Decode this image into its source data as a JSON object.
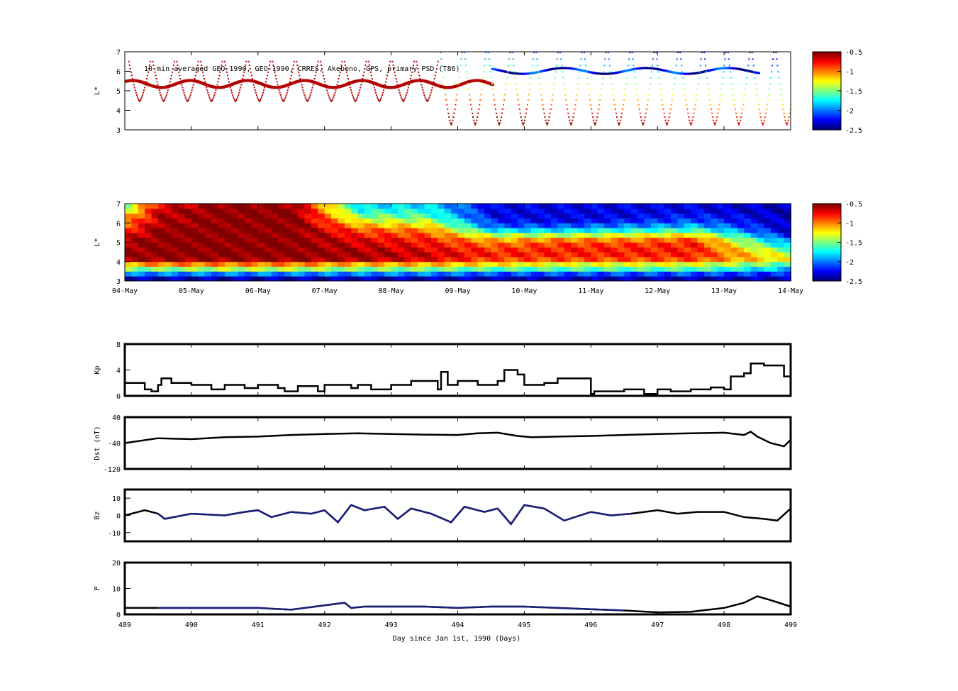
{
  "colors": {
    "axis": "#000000",
    "trace": "#000000",
    "trace_alt": "#1a1f7a",
    "background": "#ffffff"
  },
  "chart_data": [
    {
      "type": "scatter",
      "title": "10-min averaged GEO-1990, GEO-1990, CRRES, Akebono, GPS, primary PSD (T86)",
      "ylabel": "L*",
      "ylim": [
        3,
        7
      ],
      "yticks": [
        "3",
        "4",
        "5",
        "6",
        "7"
      ],
      "xlim": [
        489,
        499
      ],
      "colorbar": {
        "ticks": [
          "-0.5",
          "-1",
          "-1.5",
          "-2",
          "-2.5"
        ],
        "range": [
          -2.5,
          -0.5
        ],
        "colormap": "jet"
      },
      "orbit_arcs": {
        "geo_track_L": 5.25,
        "geo_track_psd": -0.6,
        "late_track_L": 6.0,
        "late_track_psd": -2.3,
        "arc_period_days": 0.36,
        "arc_min_L": 3.3
      }
    },
    {
      "type": "heatmap",
      "ylabel": "L*",
      "ylim": [
        3,
        7
      ],
      "yticks": [
        "3",
        "4",
        "5",
        "6",
        "7"
      ],
      "xticklabels": [
        "04-May",
        "05-May",
        "06-May",
        "07-May",
        "08-May",
        "09-May",
        "10-May",
        "11-May",
        "12-May",
        "13-May",
        "14-May"
      ],
      "colorbar": {
        "ticks": [
          "-0.5",
          "-1",
          "-1.5",
          "-2",
          "-2.5"
        ],
        "range": [
          -2.5,
          -0.5
        ],
        "colormap": "jet"
      },
      "L_bins": [
        3.0,
        3.25,
        3.5,
        3.75,
        4.0,
        4.25,
        4.5,
        4.75,
        5.0,
        5.25,
        5.5,
        5.75,
        6.0,
        6.25,
        6.5,
        6.75
      ],
      "day_profiles": [
        {
          "day": 489.0,
          "psd": [
            -2.4,
            -2.0,
            -1.5,
            -1.1,
            -0.6,
            -0.55,
            -0.55,
            -0.55,
            -0.6,
            -0.7,
            -0.8,
            -0.9,
            -1.0,
            -1.1,
            -1.3,
            -1.4
          ]
        },
        {
          "day": 489.5,
          "psd": [
            -2.4,
            -2.0,
            -1.5,
            -1.0,
            -0.55,
            -0.5,
            -0.5,
            -0.5,
            -0.5,
            -0.5,
            -0.5,
            -0.55,
            -0.6,
            -0.6,
            -0.6,
            -0.7
          ]
        },
        {
          "day": 490.5,
          "psd": [
            -2.4,
            -2.0,
            -1.4,
            -1.0,
            -0.55,
            -0.5,
            -0.5,
            -0.5,
            -0.5,
            -0.5,
            -0.5,
            -0.5,
            -0.5,
            -0.5,
            -0.5,
            -0.5
          ]
        },
        {
          "day": 491.5,
          "psd": [
            -2.4,
            -2.0,
            -1.4,
            -1.0,
            -0.55,
            -0.5,
            -0.5,
            -0.5,
            -0.5,
            -0.5,
            -0.5,
            -0.5,
            -0.5,
            -0.5,
            -0.5,
            -0.55
          ]
        },
        {
          "day": 492.5,
          "psd": [
            -2.4,
            -2.0,
            -1.5,
            -1.1,
            -0.6,
            -0.55,
            -0.6,
            -0.65,
            -0.7,
            -0.8,
            -0.9,
            -1.1,
            -1.3,
            -1.5,
            -1.7,
            -1.8
          ]
        },
        {
          "day": 493.5,
          "psd": [
            -2.4,
            -2.0,
            -1.5,
            -1.1,
            -0.7,
            -0.65,
            -0.7,
            -0.75,
            -0.8,
            -0.9,
            -1.0,
            -1.2,
            -1.4,
            -1.6,
            -1.7,
            -1.8
          ]
        },
        {
          "day": 494.5,
          "psd": [
            -2.4,
            -2.1,
            -1.6,
            -1.2,
            -0.9,
            -0.8,
            -0.85,
            -0.95,
            -1.1,
            -1.4,
            -1.8,
            -2.1,
            -2.2,
            -2.3,
            -2.3,
            -2.3
          ]
        },
        {
          "day": 495.5,
          "psd": [
            -2.4,
            -2.1,
            -1.6,
            -1.3,
            -0.9,
            -0.8,
            -0.8,
            -0.85,
            -1.0,
            -1.4,
            -1.8,
            -2.1,
            -2.3,
            -2.3,
            -2.3,
            -2.3
          ]
        },
        {
          "day": 496.5,
          "psd": [
            -2.4,
            -2.1,
            -1.6,
            -1.3,
            -0.9,
            -0.8,
            -0.8,
            -0.85,
            -1.0,
            -1.3,
            -1.7,
            -2.0,
            -2.2,
            -2.3,
            -2.3,
            -2.3
          ]
        },
        {
          "day": 497.5,
          "psd": [
            -2.4,
            -2.1,
            -1.6,
            -1.3,
            -0.9,
            -0.8,
            -0.8,
            -0.8,
            -0.9,
            -1.2,
            -1.6,
            -1.9,
            -2.1,
            -2.2,
            -2.3,
            -2.3
          ]
        },
        {
          "day": 499.0,
          "psd": [
            -2.4,
            -2.2,
            -1.9,
            -1.6,
            -1.3,
            -1.4,
            -1.6,
            -1.9,
            -2.1,
            -2.3,
            -2.4,
            -2.4,
            -2.4,
            -2.4,
            -2.4,
            -2.4
          ]
        }
      ]
    },
    {
      "type": "line",
      "ylabel": "Kp",
      "ylim": [
        0,
        8
      ],
      "yticks": [
        "0",
        "4",
        "8"
      ],
      "x": [
        489.0,
        489.3,
        489.4,
        489.5,
        489.55,
        489.7,
        490.0,
        490.3,
        490.5,
        490.8,
        491.0,
        491.3,
        491.4,
        491.6,
        491.9,
        492.0,
        492.4,
        492.5,
        492.7,
        493.0,
        493.3,
        493.5,
        493.7,
        493.75,
        493.85,
        494.0,
        494.3,
        494.6,
        494.7,
        494.9,
        495.0,
        495.3,
        495.5,
        495.8,
        496.0,
        496.05,
        496.5,
        496.8,
        497.0,
        497.2,
        497.5,
        497.8,
        498.0,
        498.1,
        498.3,
        498.4,
        498.6,
        498.8,
        498.9,
        499.0
      ],
      "values": [
        2,
        1,
        0.7,
        1.7,
        2.7,
        2,
        1.7,
        1,
        1.7,
        1.2,
        1.7,
        1.2,
        0.7,
        1.5,
        0.7,
        1.7,
        1.2,
        1.7,
        1,
        1.7,
        2.3,
        2.3,
        1,
        3.7,
        1.7,
        2.3,
        1.7,
        2.3,
        4,
        3.3,
        1.7,
        2,
        2.7,
        2.7,
        0.3,
        0.7,
        1,
        0.3,
        1,
        0.7,
        1,
        1.3,
        1,
        3,
        3.5,
        5,
        4.7,
        4.7,
        3,
        2.3
      ]
    },
    {
      "type": "line",
      "ylabel": "Dst (nT)",
      "ylim": [
        -120,
        40
      ],
      "yticks": [
        "-120",
        "-40",
        "40"
      ],
      "x": [
        489.0,
        489.5,
        490.0,
        490.5,
        491.0,
        491.5,
        492.0,
        492.5,
        493.0,
        493.5,
        494.0,
        494.3,
        494.6,
        494.9,
        495.1,
        495.5,
        496.0,
        496.5,
        497.0,
        497.5,
        498.0,
        498.3,
        498.4,
        498.5,
        498.7,
        498.9,
        499.0
      ],
      "values": [
        -40,
        -25,
        -28,
        -22,
        -20,
        -15,
        -12,
        -10,
        -12,
        -14,
        -15,
        -10,
        -8,
        -18,
        -22,
        -20,
        -18,
        -15,
        -12,
        -10,
        -8,
        -15,
        -5,
        -20,
        -40,
        -50,
        -30
      ]
    },
    {
      "type": "line",
      "ylabel": "Bz",
      "ylim": [
        -15,
        15
      ],
      "yticks": [
        "-10",
        "0",
        "10"
      ],
      "x": [
        489.0,
        489.3,
        489.5,
        489.6,
        490.0,
        490.5,
        490.8,
        491.0,
        491.2,
        491.5,
        491.8,
        492.0,
        492.2,
        492.4,
        492.6,
        492.9,
        493.1,
        493.3,
        493.6,
        493.9,
        494.1,
        494.4,
        494.6,
        494.8,
        495.0,
        495.3,
        495.6,
        496.0,
        496.3,
        496.6,
        497.0,
        497.3,
        497.6,
        498.0,
        498.3,
        498.6,
        498.8,
        499.0
      ],
      "values": [
        0,
        3,
        1,
        -2,
        1,
        0,
        2,
        3,
        -1,
        2,
        1,
        3,
        -4,
        6,
        3,
        5,
        -2,
        4,
        1,
        -4,
        5,
        2,
        4,
        -5,
        6,
        4,
        -3,
        2,
        0,
        1,
        3,
        1,
        2,
        2,
        -1,
        -2,
        -3,
        4
      ]
    },
    {
      "type": "line",
      "ylabel": "P",
      "ylim": [
        0,
        20
      ],
      "yticks": [
        "0",
        "10",
        "20"
      ],
      "xlabel": "Day since Jan 1st, 1990 (Days)",
      "xticks": [
        "489",
        "490",
        "491",
        "492",
        "493",
        "494",
        "495",
        "496",
        "497",
        "498",
        "499"
      ],
      "x": [
        489.0,
        489.5,
        490.0,
        490.5,
        491.0,
        491.5,
        492.0,
        492.3,
        492.4,
        492.6,
        493.0,
        493.5,
        494.0,
        494.5,
        495.0,
        495.5,
        496.0,
        496.5,
        497.0,
        497.5,
        498.0,
        498.3,
        498.5,
        498.7,
        499.0
      ],
      "values": [
        2.5,
        2.5,
        2.5,
        2.5,
        2.5,
        1.8,
        3.5,
        4.5,
        2.5,
        3.0,
        3.0,
        3.0,
        2.5,
        3.0,
        3.0,
        2.5,
        2.0,
        1.5,
        0.8,
        1.0,
        2.5,
        4.5,
        7.0,
        5.5,
        3.0
      ]
    }
  ]
}
